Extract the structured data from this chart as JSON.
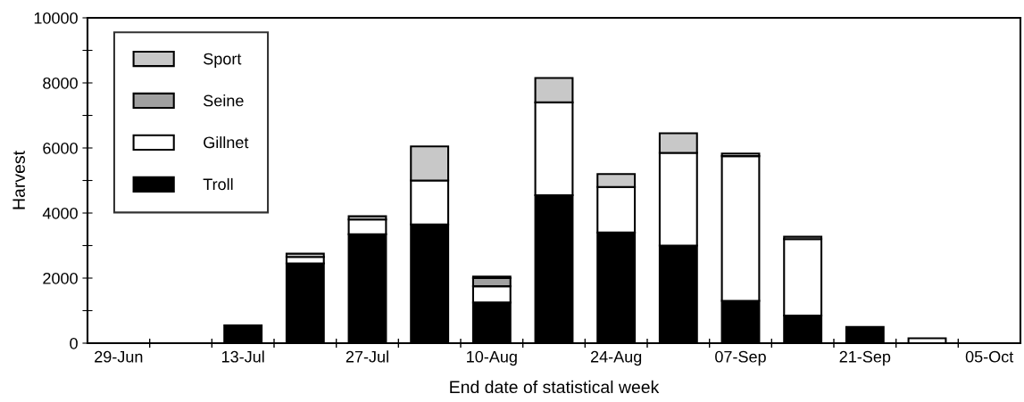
{
  "chart_data": {
    "type": "bar",
    "stacked": true,
    "xlabel": "End date of statistical week",
    "ylabel": "Harvest",
    "categories": [
      "29-Jun",
      null,
      "13-Jul",
      null,
      "27-Jul",
      null,
      "10-Aug",
      null,
      "24-Aug",
      null,
      "07-Sep",
      null,
      "21-Sep",
      null,
      "05-Oct"
    ],
    "series": [
      {
        "name": "Troll",
        "color": "#000000",
        "values": [
          null,
          null,
          550,
          2450,
          3350,
          3650,
          1250,
          4550,
          3400,
          3000,
          1300,
          850,
          500,
          0,
          null
        ]
      },
      {
        "name": "Gillnet",
        "color": "#ffffff",
        "values": [
          0,
          0,
          0,
          200,
          450,
          1350,
          500,
          2850,
          1400,
          2850,
          4450,
          2350,
          0,
          150,
          0
        ]
      },
      {
        "name": "Seine",
        "color": "#a0a0a0",
        "values": [
          0,
          0,
          0,
          0,
          0,
          0,
          250,
          0,
          0,
          0,
          0,
          0,
          0,
          0,
          0
        ]
      },
      {
        "name": "Sport",
        "color": "#c8c8c8",
        "values": [
          0,
          0,
          0,
          100,
          100,
          1050,
          50,
          750,
          400,
          600,
          80,
          70,
          0,
          0,
          0
        ]
      }
    ],
    "ylim": [
      0,
      10000
    ],
    "yticks": [
      0,
      {
        "value": 1000,
        "label": null
      },
      2000,
      {
        "value": 3000,
        "label": null
      },
      4000,
      {
        "value": 5000,
        "label": null
      },
      6000,
      {
        "value": 7000,
        "label": null
      },
      8000,
      {
        "value": 9000,
        "label": null
      },
      10000
    ],
    "legend": "top left",
    "grid": false
  }
}
